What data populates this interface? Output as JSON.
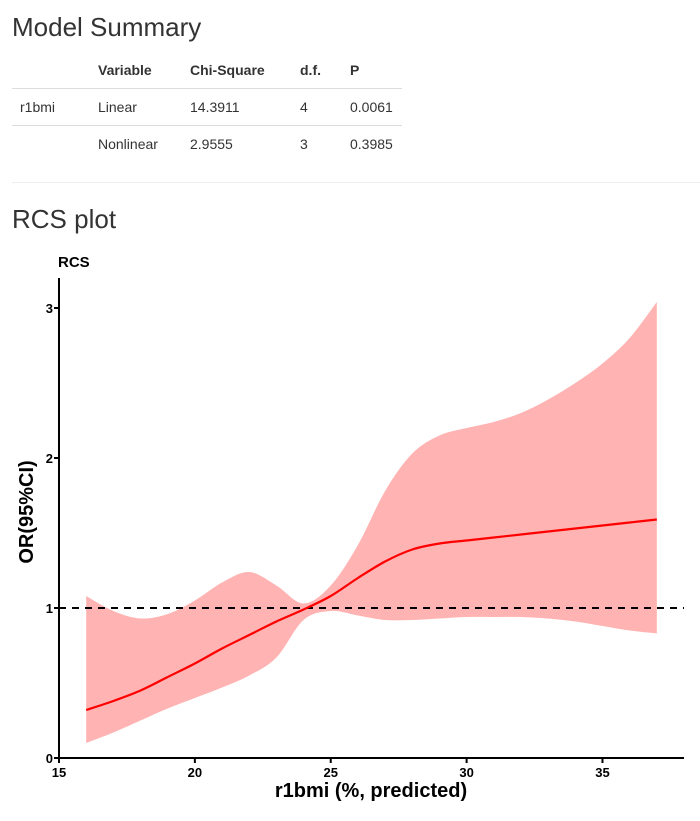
{
  "summary": {
    "title": "Model Summary",
    "headers": [
      "",
      "Variable",
      "Chi-Square",
      "d.f.",
      "P"
    ],
    "rows": [
      [
        "r1bmi",
        "Linear",
        "14.3911",
        "4",
        "0.0061"
      ],
      [
        "",
        "Nonlinear",
        "2.9555",
        "3",
        "0.3985"
      ]
    ]
  },
  "section_title": "RCS plot",
  "chart_data": {
    "type": "line",
    "title": "RCS",
    "xlabel": "r1bmi (%, predicted)",
    "ylabel": "OR(95%CI)",
    "xlim": [
      15,
      38
    ],
    "ylim": [
      0,
      3.2
    ],
    "x_ticks": [
      15,
      20,
      25,
      30,
      35
    ],
    "y_ticks": [
      0,
      1,
      2,
      3
    ],
    "reference_line": {
      "y": 1,
      "style": "dashed",
      "color": "#000000"
    },
    "series": [
      {
        "color": "#ff0000",
        "band_color": "#ffb3b3",
        "x": [
          16,
          17,
          18,
          19,
          20,
          21,
          22,
          23,
          24,
          25,
          26,
          27,
          28,
          29,
          30,
          31,
          32,
          33,
          34,
          35,
          36,
          37
        ],
        "y": [
          0.32,
          0.38,
          0.45,
          0.54,
          0.63,
          0.73,
          0.82,
          0.91,
          0.99,
          1.08,
          1.2,
          1.31,
          1.39,
          1.43,
          1.45,
          1.47,
          1.49,
          1.51,
          1.53,
          1.55,
          1.57,
          1.59
        ],
        "lower": [
          0.1,
          0.17,
          0.25,
          0.33,
          0.4,
          0.47,
          0.55,
          0.67,
          0.92,
          0.98,
          0.95,
          0.92,
          0.92,
          0.93,
          0.94,
          0.94,
          0.94,
          0.93,
          0.91,
          0.88,
          0.85,
          0.83
        ],
        "upper": [
          1.08,
          0.98,
          0.93,
          0.96,
          1.05,
          1.17,
          1.24,
          1.15,
          1.03,
          1.15,
          1.42,
          1.78,
          2.03,
          2.15,
          2.2,
          2.24,
          2.3,
          2.39,
          2.5,
          2.63,
          2.8,
          3.04
        ]
      }
    ]
  }
}
